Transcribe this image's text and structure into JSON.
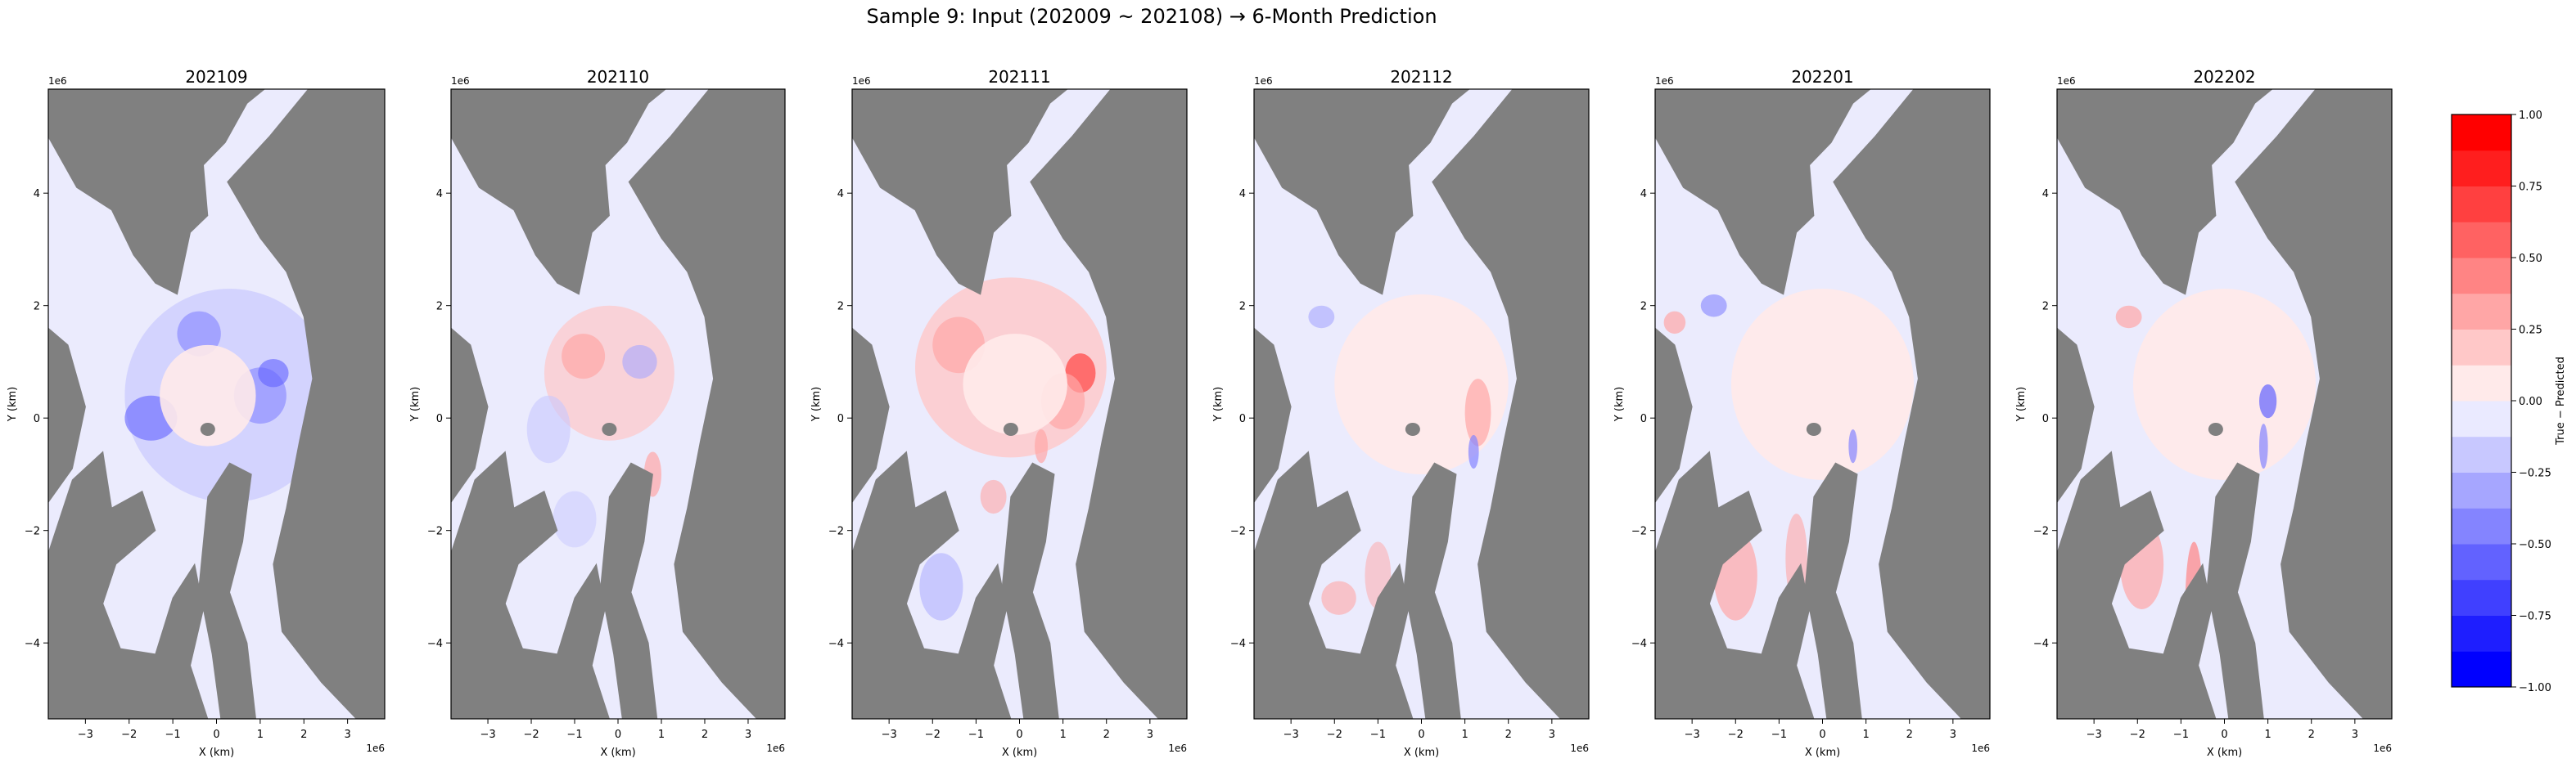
{
  "figure": {
    "suptitle": "Sample 9: Input (202009 ~ 202108) → 6-Month Prediction"
  },
  "chart_data": {
    "type": "heatmap",
    "subplot_titles": [
      "202109",
      "202110",
      "202111",
      "202112",
      "202201",
      "202202"
    ],
    "xlabel": "X (km)",
    "ylabel": "Y (km)",
    "x_offset_label": "1e6",
    "y_offset_label": "1e6",
    "x_ticks": [
      -3,
      -2,
      -1,
      0,
      1,
      2,
      3
    ],
    "y_ticks": [
      -4,
      -2,
      0,
      2,
      4
    ],
    "xlim": [
      -3.85,
      3.85
    ],
    "ylim": [
      -5.35,
      5.85
    ],
    "colorbar": {
      "label": "True − Predicted",
      "ticks": [
        "−1.00",
        "−0.75",
        "−0.50",
        "−0.25",
        "0.00",
        "0.25",
        "0.50",
        "0.75",
        "1.00"
      ],
      "range": [
        -1,
        1
      ],
      "levels": 16,
      "colors": [
        "#0000ff",
        "#1e1eff",
        "#4040ff",
        "#6262ff",
        "#8484ff",
        "#a6a6ff",
        "#c8c8ff",
        "#eaeaff",
        "#ffeaea",
        "#ffc8c8",
        "#ffa6a6",
        "#ff8484",
        "#ff6262",
        "#ff4040",
        "#ff1e1e",
        "#ff0000"
      ]
    },
    "colors": {
      "land": "#808080",
      "ocean_zero": "#ebebfd",
      "center_ice": "#fbe8e8"
    },
    "panels": [
      {
        "month": "202109",
        "pattern": "mixed-blue-ring"
      },
      {
        "month": "202110",
        "pattern": "mixed-red-blue"
      },
      {
        "month": "202111",
        "pattern": "red-dominant"
      },
      {
        "month": "202112",
        "pattern": "pale-red-center"
      },
      {
        "month": "202201",
        "pattern": "pale-red-center"
      },
      {
        "month": "202202",
        "pattern": "pale-red-center"
      }
    ]
  }
}
